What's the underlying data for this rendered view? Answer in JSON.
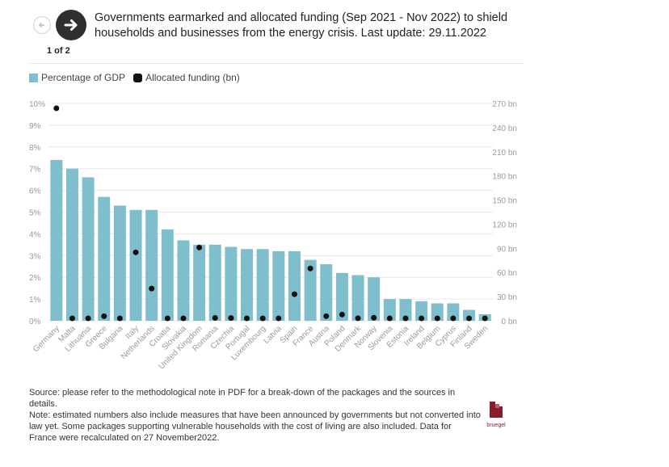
{
  "header": {
    "title": "Governments earmarked and allocated funding (Sep 2021 - Nov 2022) to shield households and businesses from the energy crisis. Last update: 29.11.2022",
    "page_indicator": "1 of 2"
  },
  "legend": {
    "bar_label": "Percentage of GDP",
    "dot_label": "Allocated funding (bn)"
  },
  "footer": {
    "source": "Source: please refer to the methodological note in PDF for a break-down of the packages and the sources in details.",
    "note": "Note: estimated numbers also include measures that have been announced by governments but not converted into law yet. Some packages supporting vulnerable households with the cost of living are also included. Data for France were recalculated on 27 November2022.",
    "logo_text": "bruegel"
  },
  "colors": {
    "bar": "#7fbfcd",
    "dot": "#111111",
    "grid": "#e9e9e9",
    "tick": "#9a9a9a"
  },
  "chart_data": {
    "type": "bar",
    "categories": [
      "Germany",
      "Malta",
      "Lithuania",
      "Greece",
      "Bulgaria",
      "Italy",
      "Netherlands",
      "Croatia",
      "Slovakia",
      "United Kingdom",
      "Romania",
      "Czechia",
      "Portugal",
      "Luxembourg",
      "Latvia",
      "Spain",
      "France",
      "Austria",
      "Poland",
      "Denmark",
      "Norway",
      "Slovenia",
      "Estonia",
      "Ireland",
      "Belgium",
      "Cyprus",
      "Finland",
      "Sweden"
    ],
    "series": [
      {
        "name": "Percentage of GDP",
        "type": "bar",
        "axis": "left",
        "values": [
          7.4,
          7.0,
          6.6,
          5.7,
          5.3,
          5.1,
          5.1,
          4.2,
          3.7,
          3.5,
          3.5,
          3.4,
          3.3,
          3.3,
          3.2,
          3.2,
          2.8,
          2.6,
          2.2,
          2.1,
          2.0,
          1.0,
          1.0,
          0.9,
          0.8,
          0.8,
          0.5,
          0.3
        ]
      },
      {
        "name": "Allocated funding (bn)",
        "type": "scatter",
        "axis": "right",
        "values": [
          264,
          0.4,
          1.3,
          5.7,
          1.1,
          85,
          40,
          1.2,
          1.1,
          91,
          3.5,
          3.4,
          2.3,
          0.4,
          0.2,
          33,
          65,
          5.7,
          7.7,
          3.1,
          3.8,
          0.3,
          0.2,
          1.2,
          1.1,
          0.2,
          0.3,
          0.3
        ]
      }
    ],
    "ylabel_left_ticks": [
      "0%",
      "1%",
      "2%",
      "3%",
      "4%",
      "5%",
      "6%",
      "7%",
      "8%",
      "9%",
      "10%"
    ],
    "ylabel_right_ticks": [
      "0 bn",
      "30 bn",
      "60 bn",
      "90 bn",
      "120 bn",
      "150 bn",
      "180 bn",
      "210 bn",
      "240 bn",
      "270 bn"
    ],
    "ylim_left": [
      0,
      10
    ],
    "ylim_right": [
      0,
      270
    ],
    "grid": true,
    "legend_position": "top-left"
  }
}
